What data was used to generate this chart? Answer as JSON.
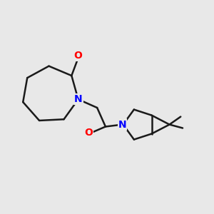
{
  "background_color": "#e8e8e8",
  "bond_color": "#1a1a1a",
  "N_color": "#0000ff",
  "O_color": "#ff0000",
  "line_width": 1.8,
  "font_size_atom": 10,
  "figsize": [
    3.0,
    3.0
  ],
  "dpi": 100,
  "xlim": [
    0.0,
    1.0
  ],
  "ylim": [
    0.0,
    1.0
  ]
}
